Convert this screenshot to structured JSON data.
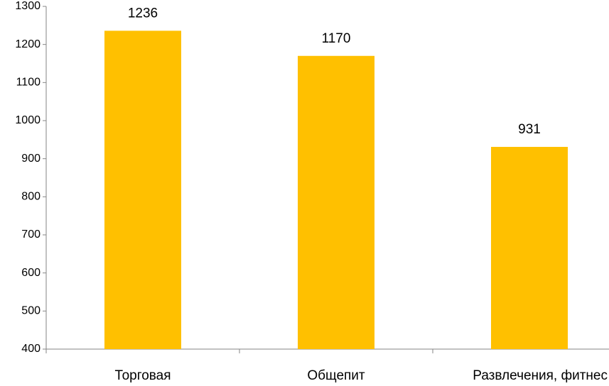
{
  "chart_data": {
    "type": "bar",
    "categories": [
      "Торговая",
      "Общепит",
      "Развлечения, фитнес"
    ],
    "values": [
      1236,
      1170,
      931
    ],
    "color": "#ffc000",
    "ylim": [
      400,
      1300
    ],
    "yticks": [
      400,
      500,
      600,
      700,
      800,
      900,
      1000,
      1100,
      1200,
      1300
    ],
    "grid": false
  }
}
